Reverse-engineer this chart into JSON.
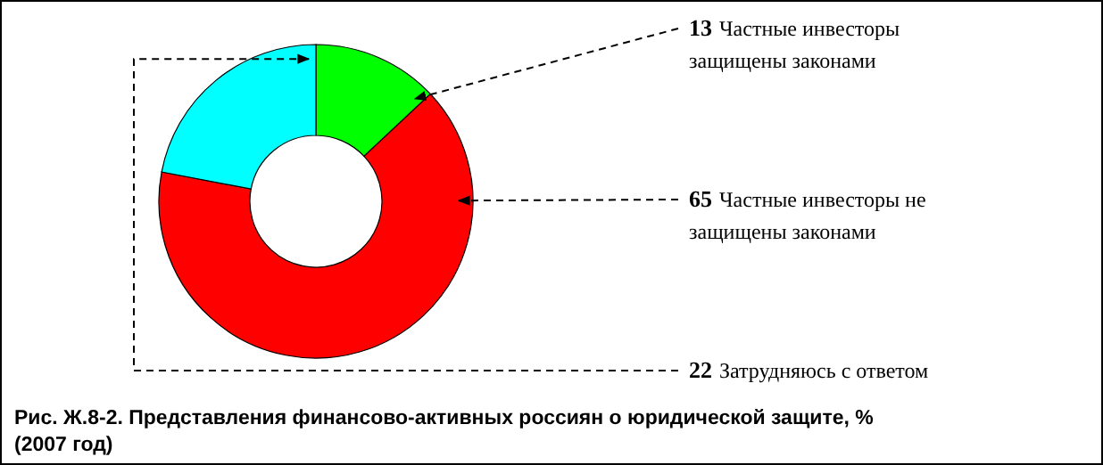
{
  "chart_data": {
    "type": "donut",
    "title": "Рис. Ж.8-2. Представления финансово-активных россиян о юридической защите, % (2007 год)",
    "categories": [
      "Частные инвесторы защищены законами",
      "Частные инвесторы не защищены законами",
      "Затрудняюсь с ответом"
    ],
    "values": [
      13,
      65,
      22
    ],
    "colors": [
      "#00ff00",
      "#ff0000",
      "#00ffff"
    ],
    "data_labels": true
  }
}
